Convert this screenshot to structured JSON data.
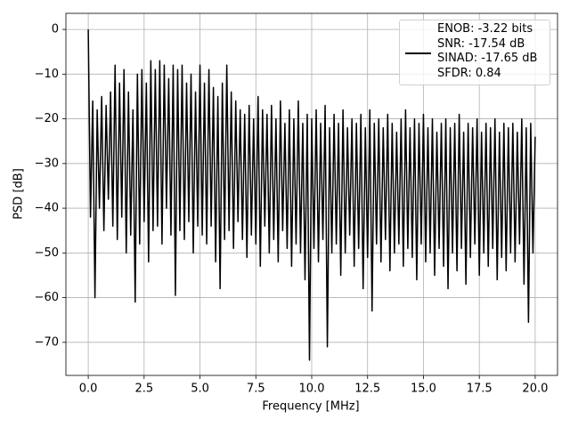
{
  "chart_data": {
    "type": "line",
    "xlabel": "Frequency [MHz]",
    "ylabel": "PSD [dB]",
    "grid": true,
    "legend": "upper right",
    "xlim": [
      -1,
      21
    ],
    "ylim": [
      -77.4,
      3.6
    ],
    "xticks": [
      {
        "value": 0,
        "label": "0.0"
      },
      {
        "value": 2.5,
        "label": "2.5"
      },
      {
        "value": 5,
        "label": "5.0"
      },
      {
        "value": 7.5,
        "label": "7.5"
      },
      {
        "value": 10,
        "label": "10.0"
      },
      {
        "value": 12.5,
        "label": "12.5"
      },
      {
        "value": 15,
        "label": "15.0"
      },
      {
        "value": 17.5,
        "label": "17.5"
      },
      {
        "value": 20,
        "label": "20.0"
      }
    ],
    "yticks": [
      {
        "value": -70,
        "label": "−70"
      },
      {
        "value": -60,
        "label": "−60"
      },
      {
        "value": -50,
        "label": "−50"
      },
      {
        "value": -40,
        "label": "−40"
      },
      {
        "value": -30,
        "label": "−30"
      },
      {
        "value": -20,
        "label": "−20"
      },
      {
        "value": -10,
        "label": "−10"
      },
      0
    ],
    "x": [
      0,
      0.1,
      0.2,
      0.3,
      0.4,
      0.5,
      0.6,
      0.7,
      0.8,
      0.9,
      1,
      1.1,
      1.2,
      1.3,
      1.4,
      1.5,
      1.6,
      1.7,
      1.8,
      1.9,
      2,
      2.1,
      2.2,
      2.3,
      2.4,
      2.5,
      2.6,
      2.7,
      2.8,
      2.9,
      3,
      3.1,
      3.2,
      3.3,
      3.4,
      3.5,
      3.6,
      3.7,
      3.8,
      3.9,
      4,
      4.1,
      4.2,
      4.3,
      4.4,
      4.5,
      4.6,
      4.7,
      4.8,
      4.9,
      5,
      5.1,
      5.2,
      5.3,
      5.4,
      5.5,
      5.6,
      5.7,
      5.8,
      5.9,
      6,
      6.1,
      6.2,
      6.3,
      6.4,
      6.5,
      6.6,
      6.7,
      6.8,
      6.9,
      7,
      7.1,
      7.2,
      7.3,
      7.4,
      7.5,
      7.6,
      7.7,
      7.8,
      7.9,
      8,
      8.1,
      8.2,
      8.3,
      8.4,
      8.5,
      8.6,
      8.7,
      8.8,
      8.9,
      9,
      9.1,
      9.2,
      9.3,
      9.4,
      9.5,
      9.6,
      9.7,
      9.8,
      9.9,
      10,
      10.1,
      10.2,
      10.3,
      10.4,
      10.5,
      10.6,
      10.7,
      10.8,
      10.9,
      11,
      11.1,
      11.2,
      11.3,
      11.4,
      11.5,
      11.6,
      11.7,
      11.8,
      11.9,
      12,
      12.1,
      12.2,
      12.3,
      12.4,
      12.5,
      12.6,
      12.7,
      12.8,
      12.9,
      13,
      13.1,
      13.2,
      13.3,
      13.4,
      13.5,
      13.6,
      13.7,
      13.8,
      13.9,
      14,
      14.1,
      14.2,
      14.3,
      14.4,
      14.5,
      14.6,
      14.7,
      14.8,
      14.9,
      15,
      15.1,
      15.2,
      15.3,
      15.4,
      15.5,
      15.6,
      15.7,
      15.8,
      15.9,
      16,
      16.1,
      16.2,
      16.3,
      16.4,
      16.5,
      16.6,
      16.7,
      16.8,
      16.9,
      17,
      17.1,
      17.2,
      17.3,
      17.4,
      17.5,
      17.6,
      17.7,
      17.8,
      17.9,
      18,
      18.1,
      18.2,
      18.3,
      18.4,
      18.5,
      18.6,
      18.7,
      18.8,
      18.9,
      19,
      19.1,
      19.2,
      19.3,
      19.4,
      19.5,
      19.6,
      19.7,
      19.8,
      19.9,
      20
    ],
    "series": [
      {
        "name": "ENOB: -3.22 bits\nSNR: -17.54 dB\nSINAD: -17.65 dB\nSFDR: 0.84",
        "color": "#000000",
        "values": [
          0,
          -42,
          -16,
          -60,
          -18,
          -40,
          -15,
          -45,
          -17,
          -38,
          -14,
          -44,
          -8,
          -47,
          -12,
          -42,
          -9,
          -50,
          -14,
          -46,
          -18,
          -61,
          -10,
          -48,
          -9,
          -43,
          -12,
          -52,
          -7,
          -45,
          -9,
          -44,
          -7,
          -48,
          -8,
          -40,
          -11,
          -46,
          -8,
          -59.5,
          -9,
          -45,
          -8,
          -47,
          -12,
          -43,
          -10,
          -50,
          -14,
          -44,
          -8,
          -46,
          -12,
          -48,
          -9,
          -44,
          -13,
          -52,
          -15,
          -58,
          -12,
          -47,
          -8,
          -45,
          -14,
          -49,
          -16,
          -43,
          -18,
          -47,
          -19,
          -51,
          -17,
          -46,
          -20,
          -48,
          -15,
          -53,
          -18,
          -44,
          -19,
          -50,
          -17,
          -47,
          -20,
          -52,
          -16,
          -45,
          -21,
          -49,
          -18,
          -53,
          -20,
          -48,
          -16,
          -50,
          -21,
          -56,
          -19,
          -74,
          -20,
          -49,
          -18,
          -52,
          -21,
          -47,
          -17,
          -71,
          -22,
          -50,
          -19,
          -48,
          -21,
          -55,
          -18,
          -50,
          -22,
          -46,
          -20,
          -53,
          -21,
          -49,
          -19,
          -58,
          -22,
          -51,
          -18,
          -63,
          -21,
          -48,
          -20,
          -52,
          -22,
          -47,
          -19,
          -54,
          -21,
          -50,
          -23,
          -48,
          -20,
          -53,
          -18,
          -49,
          -22,
          -51,
          -20,
          -56,
          -21,
          -48,
          -19,
          -52,
          -22,
          -50,
          -20,
          -55,
          -23,
          -49,
          -21,
          -53,
          -20,
          -58,
          -22,
          -50,
          -21,
          -54,
          -19,
          -49,
          -23,
          -57,
          -21,
          -51,
          -22,
          -48,
          -20,
          -55,
          -23,
          -50,
          -21,
          -53,
          -22,
          -49,
          -20,
          -56,
          -23,
          -51,
          -21,
          -54,
          -22,
          -50,
          -21,
          -52,
          -23,
          -48,
          -20,
          -57,
          -22,
          -65.5,
          -21,
          -50,
          -24
        ]
      }
    ]
  }
}
